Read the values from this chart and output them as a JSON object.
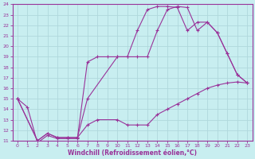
{
  "xlabel": "Windchill (Refroidissement éolien,°C)",
  "xlim": [
    -0.5,
    23.5
  ],
  "ylim": [
    11,
    24
  ],
  "xticks": [
    0,
    1,
    2,
    3,
    4,
    5,
    6,
    7,
    8,
    9,
    10,
    11,
    12,
    13,
    14,
    15,
    16,
    17,
    18,
    19,
    20,
    21,
    22,
    23
  ],
  "yticks": [
    11,
    12,
    13,
    14,
    15,
    16,
    17,
    18,
    19,
    20,
    21,
    22,
    23,
    24
  ],
  "background_color": "#c8eef0",
  "grid_color": "#b0d8dc",
  "line_color": "#993399",
  "line1_x": [
    0,
    1,
    2,
    3,
    4,
    5,
    6,
    7,
    8,
    9,
    10,
    11,
    12,
    13,
    14,
    15,
    16,
    17,
    18,
    19,
    20,
    21,
    22,
    23
  ],
  "line1_y": [
    15,
    14.2,
    10.8,
    11.5,
    11.2,
    11.2,
    11.2,
    18.5,
    19.0,
    19.0,
    19.0,
    19.0,
    21.5,
    23.5,
    23.8,
    23.8,
    23.7,
    21.5,
    22.3,
    22.3,
    21.3,
    19.3,
    17.3,
    16.5
  ],
  "line2_x": [
    0,
    2,
    3,
    4,
    5,
    6,
    7,
    10,
    11,
    12,
    13,
    14,
    15,
    16,
    17,
    18,
    19,
    20,
    21,
    22,
    23
  ],
  "line2_y": [
    15,
    11.0,
    11.7,
    11.3,
    11.3,
    11.3,
    15.0,
    19.0,
    19.0,
    19.0,
    19.0,
    21.5,
    23.5,
    23.8,
    23.7,
    21.5,
    22.3,
    21.3,
    19.3,
    17.3,
    16.5
  ],
  "line3_x": [
    0,
    2,
    3,
    4,
    5,
    6,
    7,
    8,
    10,
    11,
    12,
    13,
    14,
    15,
    16,
    17,
    18,
    19,
    20,
    21,
    22,
    23
  ],
  "line3_y": [
    15,
    11.0,
    11.7,
    11.3,
    11.3,
    11.3,
    12.5,
    13.0,
    13.0,
    12.5,
    12.5,
    12.5,
    13.5,
    14.0,
    14.5,
    15.0,
    15.5,
    16.0,
    16.3,
    16.5,
    16.6,
    16.5
  ]
}
